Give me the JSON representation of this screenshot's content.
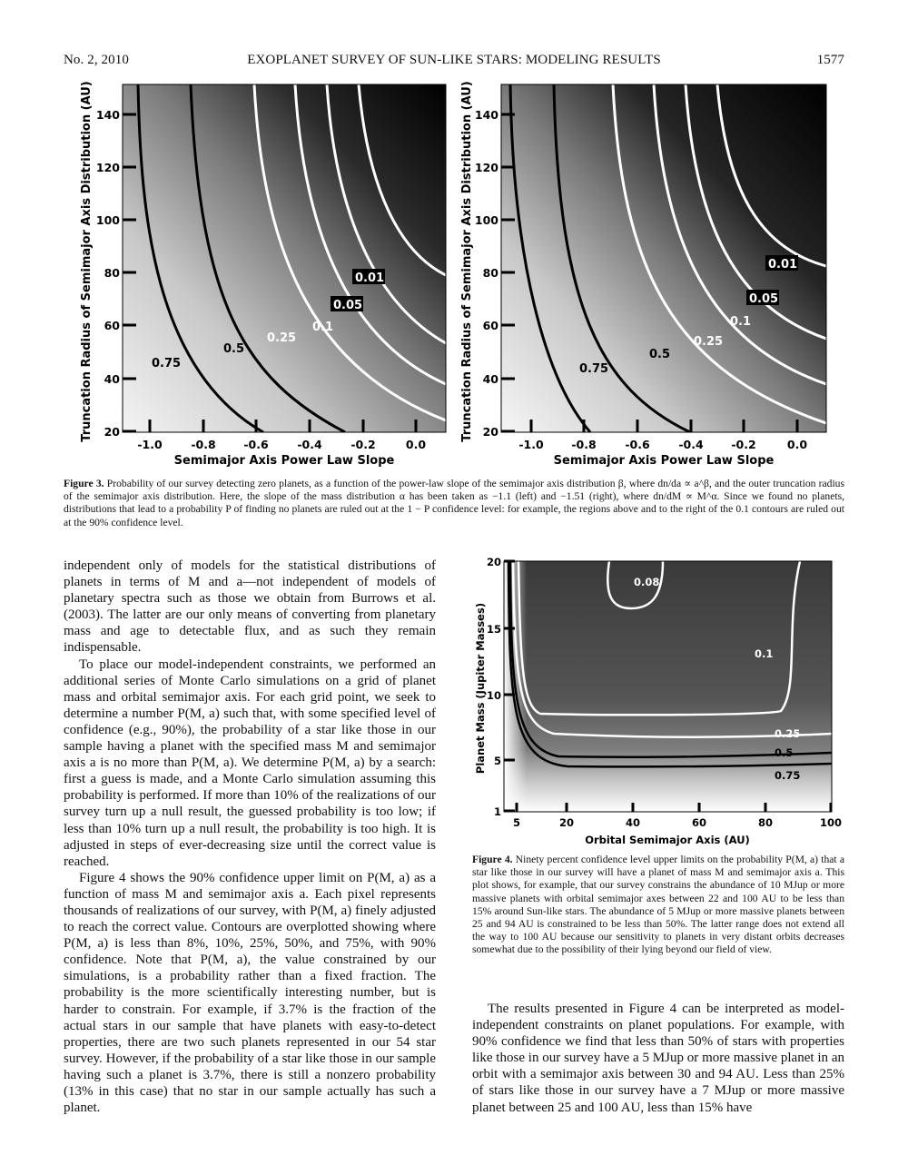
{
  "header": {
    "left": "No. 2, 2010",
    "center": "EXOPLANET SURVEY OF SUN-LIKE STARS: MODELING RESULTS",
    "right": "1577"
  },
  "figure3": {
    "panels": [
      {
        "ylabel": "Truncation Radius of Semimajor Axis Distribution (AU)",
        "xlabel": "Semimajor Axis Power Law Slope",
        "xticks": [
          "-1.0",
          "-0.8",
          "-0.6",
          "-0.4",
          "-0.2",
          "0.0"
        ],
        "yticks": [
          "20",
          "40",
          "60",
          "80",
          "100",
          "120",
          "140"
        ],
        "contours": [
          "0.75",
          "0.5",
          "0.25",
          "0.1",
          "0.05",
          "0.01"
        ]
      },
      {
        "ylabel": "Truncation Radius of Semimajor Axis Distribution (AU)",
        "xlabel": "Semimajor Axis Power Law Slope",
        "xticks": [
          "-1.0",
          "-0.8",
          "-0.6",
          "-0.4",
          "-0.2",
          "0.0"
        ],
        "yticks": [
          "20",
          "40",
          "60",
          "80",
          "100",
          "120",
          "140"
        ],
        "contours": [
          "0.75",
          "0.5",
          "0.25",
          "0.1",
          "0.05",
          "0.01"
        ]
      }
    ],
    "caption_label": "Figure 3.",
    "caption": "Probability of our survey detecting zero planets, as a function of the power-law slope of the semimajor axis distribution β, where dn/da ∝ a^β, and the outer truncation radius of the semimajor axis distribution. Here, the slope of the mass distribution α has been taken as −1.1 (left) and −1.51 (right), where dn/dM ∝ M^α. Since we found no planets, distributions that lead to a probability P of finding no planets are ruled out at the 1 − P confidence level: for example, the regions above and to the right of the 0.1 contours are ruled out at the 90% confidence level."
  },
  "figure4": {
    "ylabel": "Planet Mass (Jupiter Masses)",
    "xlabel": "Orbital Semimajor Axis (AU)",
    "xticks": [
      "5",
      "20",
      "40",
      "60",
      "80",
      "100"
    ],
    "yticks": [
      "1",
      "5",
      "10",
      "15",
      "20"
    ],
    "contours": [
      "0.08",
      "0.1",
      "0.25",
      "0.5",
      "0.75"
    ],
    "caption_label": "Figure 4.",
    "caption": "Ninety percent confidence level upper limits on the probability P(M, a) that a star like those in our survey will have a planet of mass M and semimajor axis a. This plot shows, for example, that our survey constrains the abundance of 10 MJup or more massive planets with orbital semimajor axes between 22 and 100 AU to be less than 15% around Sun-like stars. The abundance of 5 MJup or more massive planets between 25 and 94 AU is constrained to be less than 50%. The latter range does not extend all the way to 100 AU because our sensitivity to planets in very distant orbits decreases somewhat due to the possibility of their lying beyond our field of view."
  },
  "left_column": [
    "independent only of models for the statistical distributions of planets in terms of M and a—not independent of models of planetary spectra such as those we obtain from Burrows et al. (2003). The latter are our only means of converting from planetary mass and age to detectable flux, and as such they remain indispensable.",
    "To place our model-independent constraints, we performed an additional series of Monte Carlo simulations on a grid of planet mass and orbital semimajor axis. For each grid point, we seek to determine a number P(M, a) such that, with some specified level of confidence (e.g., 90%), the probability of a star like those in our sample having a planet with the specified mass M and semimajor axis a is no more than P(M, a). We determine P(M, a) by a search: first a guess is made, and a Monte Carlo simulation assuming this probability is performed. If more than 10% of the realizations of our survey turn up a null result, the guessed probability is too low; if less than 10% turn up a null result, the probability is too high. It is adjusted in steps of ever-decreasing size until the correct value is reached.",
    "Figure 4 shows the 90% confidence upper limit on P(M, a) as a function of mass M and semimajor axis a. Each pixel represents thousands of realizations of our survey, with P(M, a) finely adjusted to reach the correct value. Contours are overplotted showing where P(M, a) is less than 8%, 10%, 25%, 50%, and 75%, with 90% confidence. Note that P(M, a), the value constrained by our simulations, is a probability rather than a fixed fraction. The probability is the more scientifically interesting number, but is harder to constrain. For example, if 3.7% is the fraction of the actual stars in our sample that have planets with easy-to-detect properties, there are two such planets represented in our 54 star survey. However, if the probability of a star like those in our sample having such a planet is 3.7%, there is still a nonzero probability (13% in this case) that no star in our sample actually has such a planet."
  ],
  "right_column": [
    "The results presented in Figure 4 can be interpreted as model-independent constraints on planet populations. For example, with 90% confidence we find that less than 50% of stars with properties like those in our survey have a 5 MJup or more massive planet in an orbit with a semimajor axis between 30 and 94 AU. Less than 25% of stars like those in our survey have a 7 MJup or more massive planet between 25 and 100 AU, less than 15% have"
  ]
}
